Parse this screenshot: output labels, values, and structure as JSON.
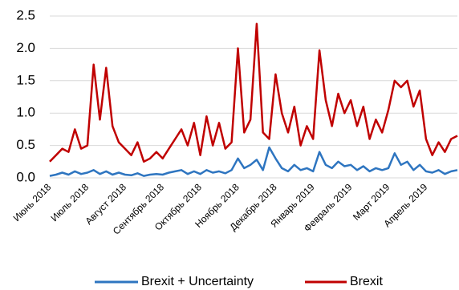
{
  "chart_data": {
    "type": "line",
    "categories": [
      "Июнь 2018",
      null,
      null,
      null,
      null,
      null,
      "Июль 2018",
      null,
      null,
      null,
      null,
      null,
      "Август 2018",
      null,
      null,
      null,
      null,
      null,
      "Сентябрь 2018",
      null,
      null,
      null,
      null,
      null,
      "Октябрь 2018",
      null,
      null,
      null,
      null,
      null,
      "Ноябрь 2018",
      null,
      null,
      null,
      null,
      null,
      "Декабрь 2018",
      null,
      null,
      null,
      null,
      null,
      "Январь 2019",
      null,
      null,
      null,
      null,
      null,
      "Февраль 2019",
      null,
      null,
      null,
      null,
      null,
      "Март 2019",
      null,
      null,
      null,
      null,
      null,
      "Апрель 2019",
      null,
      null,
      null,
      null,
      null
    ],
    "series": [
      {
        "name": "Brexit + Uncertainty",
        "color": "#2e75c0",
        "values": [
          0.03,
          0.05,
          0.08,
          0.05,
          0.1,
          0.06,
          0.08,
          0.12,
          0.06,
          0.1,
          0.05,
          0.08,
          0.05,
          0.04,
          0.07,
          0.03,
          0.05,
          0.06,
          0.05,
          0.08,
          0.1,
          0.12,
          0.06,
          0.1,
          0.06,
          0.12,
          0.08,
          0.1,
          0.07,
          0.12,
          0.3,
          0.15,
          0.2,
          0.28,
          0.12,
          0.47,
          0.3,
          0.15,
          0.1,
          0.2,
          0.12,
          0.15,
          0.1,
          0.4,
          0.2,
          0.15,
          0.25,
          0.18,
          0.2,
          0.12,
          0.18,
          0.1,
          0.15,
          0.12,
          0.15,
          0.38,
          0.2,
          0.25,
          0.12,
          0.2,
          0.1,
          0.08,
          0.12,
          0.06,
          0.1,
          0.12
        ]
      },
      {
        "name": "Brexit",
        "color": "#c00000",
        "values": [
          0.25,
          0.35,
          0.45,
          0.4,
          0.75,
          0.45,
          0.5,
          1.75,
          0.9,
          1.7,
          0.8,
          0.55,
          0.45,
          0.35,
          0.55,
          0.25,
          0.3,
          0.4,
          0.3,
          0.45,
          0.6,
          0.75,
          0.5,
          0.85,
          0.35,
          0.95,
          0.5,
          0.85,
          0.45,
          0.55,
          2.0,
          0.7,
          0.9,
          2.38,
          0.7,
          0.6,
          1.6,
          1.0,
          0.7,
          1.1,
          0.5,
          0.8,
          0.6,
          1.97,
          1.2,
          0.8,
          1.3,
          1.0,
          1.2,
          0.8,
          1.1,
          0.6,
          0.9,
          0.7,
          1.05,
          1.5,
          1.4,
          1.5,
          1.1,
          1.35,
          0.6,
          0.35,
          0.55,
          0.4,
          0.6,
          0.65
        ]
      }
    ],
    "ylim": [
      0,
      2.5
    ],
    "yticks": [
      {
        "value": 0,
        "label": "0.0"
      },
      0.5,
      {
        "value": 1,
        "label": "1.0"
      },
      1.5,
      {
        "value": 2,
        "label": "2.0"
      },
      2.5
    ],
    "grid": true,
    "legend": "bottom"
  }
}
